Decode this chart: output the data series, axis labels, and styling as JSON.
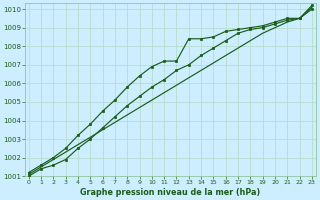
{
  "title": "Graphe pression niveau de la mer (hPa)",
  "bg_color": "#cceeff",
  "grid_color": "#b8ddd0",
  "line_color_dark": "#1a5c1a",
  "x_ticks": [
    0,
    1,
    2,
    3,
    4,
    5,
    6,
    7,
    8,
    9,
    10,
    11,
    12,
    13,
    14,
    15,
    16,
    17,
    18,
    19,
    20,
    21,
    22,
    23
  ],
  "y_ticks": [
    1001,
    1002,
    1003,
    1004,
    1005,
    1006,
    1007,
    1008,
    1009,
    1010
  ],
  "xlim": [
    -0.3,
    23.3
  ],
  "ylim": [
    1001,
    1010.3
  ],
  "series_straight": [
    1001.1,
    1001.5,
    1001.9,
    1002.3,
    1002.7,
    1003.1,
    1003.5,
    1003.9,
    1004.3,
    1004.7,
    1005.1,
    1005.5,
    1005.9,
    1006.3,
    1006.7,
    1007.1,
    1007.5,
    1007.9,
    1008.3,
    1008.7,
    1009.0,
    1009.3,
    1009.5,
    1010.1
  ],
  "series_upper": [
    1001.2,
    1001.6,
    1002.0,
    1002.5,
    1003.2,
    1003.8,
    1004.5,
    1005.1,
    1005.8,
    1006.4,
    1006.9,
    1007.2,
    1007.2,
    1008.4,
    1008.4,
    1008.5,
    1008.8,
    1008.9,
    1009.0,
    1009.1,
    1009.3,
    1009.5,
    1009.5,
    1010.2
  ],
  "series_lower": [
    1001.0,
    1001.4,
    1001.6,
    1001.9,
    1002.5,
    1003.0,
    1003.6,
    1004.2,
    1004.8,
    1005.3,
    1005.8,
    1006.2,
    1006.7,
    1007.0,
    1007.5,
    1007.9,
    1008.3,
    1008.7,
    1008.9,
    1009.0,
    1009.2,
    1009.4,
    1009.5,
    1010.0
  ]
}
